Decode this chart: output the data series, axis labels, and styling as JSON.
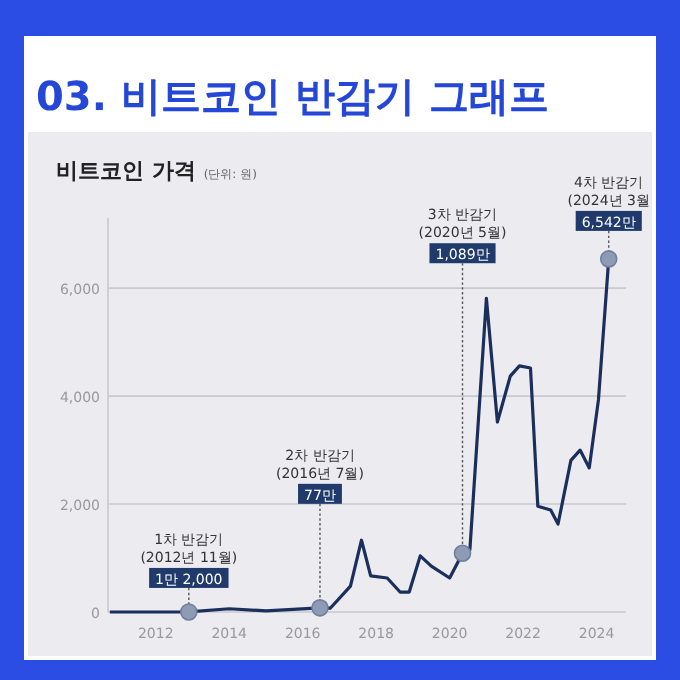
{
  "chart_data": {
    "type": "line",
    "title": "03. 비트코인 반감기 그래프",
    "ylabel": "비트코인 가격",
    "subtitle": "(단위: 원)",
    "x": [
      2010.75,
      2012.9,
      2014,
      2015,
      2016.47,
      2016.75,
      2017.3,
      2017.6,
      2017.85,
      2018.3,
      2018.65,
      2018.9,
      2019.2,
      2019.5,
      2020.0,
      2020.35,
      2020.55,
      2021.0,
      2021.3,
      2021.65,
      2021.9,
      2022.2,
      2022.4,
      2022.75,
      2022.95,
      2023.3,
      2023.55,
      2023.8,
      2024.05,
      2024.33
    ],
    "values": [
      0,
      1.2,
      60,
      20,
      77,
      70,
      480,
      1330,
      670,
      630,
      370,
      370,
      1040,
      850,
      630,
      1089,
      1150,
      5810,
      3520,
      4370,
      4560,
      4520,
      1960,
      1890,
      1630,
      2810,
      3000,
      2670,
      3930,
      6542
    ],
    "value_labels": [
      null,
      "1만 2,000",
      null,
      null,
      "77만",
      null,
      null,
      null,
      null,
      null,
      null,
      null,
      null,
      null,
      null,
      "1,089만",
      null,
      null,
      null,
      null,
      null,
      null,
      null,
      null,
      null,
      null,
      null,
      null,
      null,
      "6,542만"
    ],
    "color": "#1b2f5c",
    "annotations": [
      "1차 반감기\n(2012년 11월)",
      "2차 반감기\n(2016년 7월)",
      "3차 반감기\n(2020년 5월)",
      "4차 반감기\n(2024년 3월"
    ],
    "xlim": [
      2010.7,
      2024.8
    ],
    "ylim": [
      0,
      7300
    ],
    "xticks": [
      2012,
      2014,
      2016,
      2018,
      2020,
      2022,
      2024
    ],
    "yticks": [
      {
        "value": 0,
        "label": "0"
      },
      {
        "value": 2000,
        "label": "2,000"
      },
      {
        "value": 4000,
        "label": "4,000"
      },
      {
        "value": 6000,
        "label": "6,000"
      }
    ],
    "grid": "y"
  }
}
